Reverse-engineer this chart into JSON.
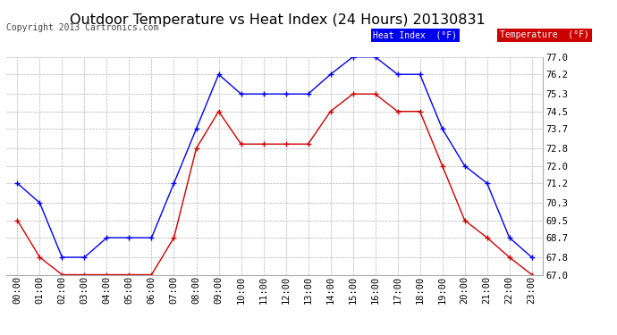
{
  "title": "Outdoor Temperature vs Heat Index (24 Hours) 20130831",
  "copyright": "Copyright 2013 Cartronics.com",
  "legend_heat": "Heat Index  (°F)",
  "legend_temp": "Temperature  (°F)",
  "x_labels": [
    "00:00",
    "01:00",
    "02:00",
    "03:00",
    "04:00",
    "05:00",
    "06:00",
    "07:00",
    "08:00",
    "09:00",
    "10:00",
    "11:00",
    "12:00",
    "13:00",
    "14:00",
    "15:00",
    "16:00",
    "17:00",
    "18:00",
    "19:00",
    "20:00",
    "21:00",
    "22:00",
    "23:00"
  ],
  "heat_index": [
    71.2,
    70.3,
    67.8,
    67.8,
    68.7,
    68.7,
    68.7,
    71.2,
    73.7,
    76.2,
    75.3,
    75.3,
    75.3,
    75.3,
    76.2,
    77.0,
    77.0,
    76.2,
    76.2,
    73.7,
    72.0,
    71.2,
    68.7,
    67.8
  ],
  "temperature": [
    69.5,
    67.8,
    67.0,
    67.0,
    67.0,
    67.0,
    67.0,
    68.7,
    72.8,
    74.5,
    73.0,
    73.0,
    73.0,
    73.0,
    74.5,
    75.3,
    75.3,
    74.5,
    74.5,
    72.0,
    69.5,
    68.7,
    67.8,
    67.0
  ],
  "ylim_min": 67.0,
  "ylim_max": 77.0,
  "yticks": [
    67.0,
    67.8,
    68.7,
    69.5,
    70.3,
    71.2,
    72.0,
    72.8,
    73.7,
    74.5,
    75.3,
    76.2,
    77.0
  ],
  "heat_color": "#0000ee",
  "temp_color": "#cc0000",
  "background_color": "#ffffff",
  "grid_color": "#aaaaaa",
  "title_fontsize": 11.5,
  "tick_fontsize": 7.5,
  "copyright_fontsize": 7,
  "marker_size": 4,
  "line_width": 1.0
}
